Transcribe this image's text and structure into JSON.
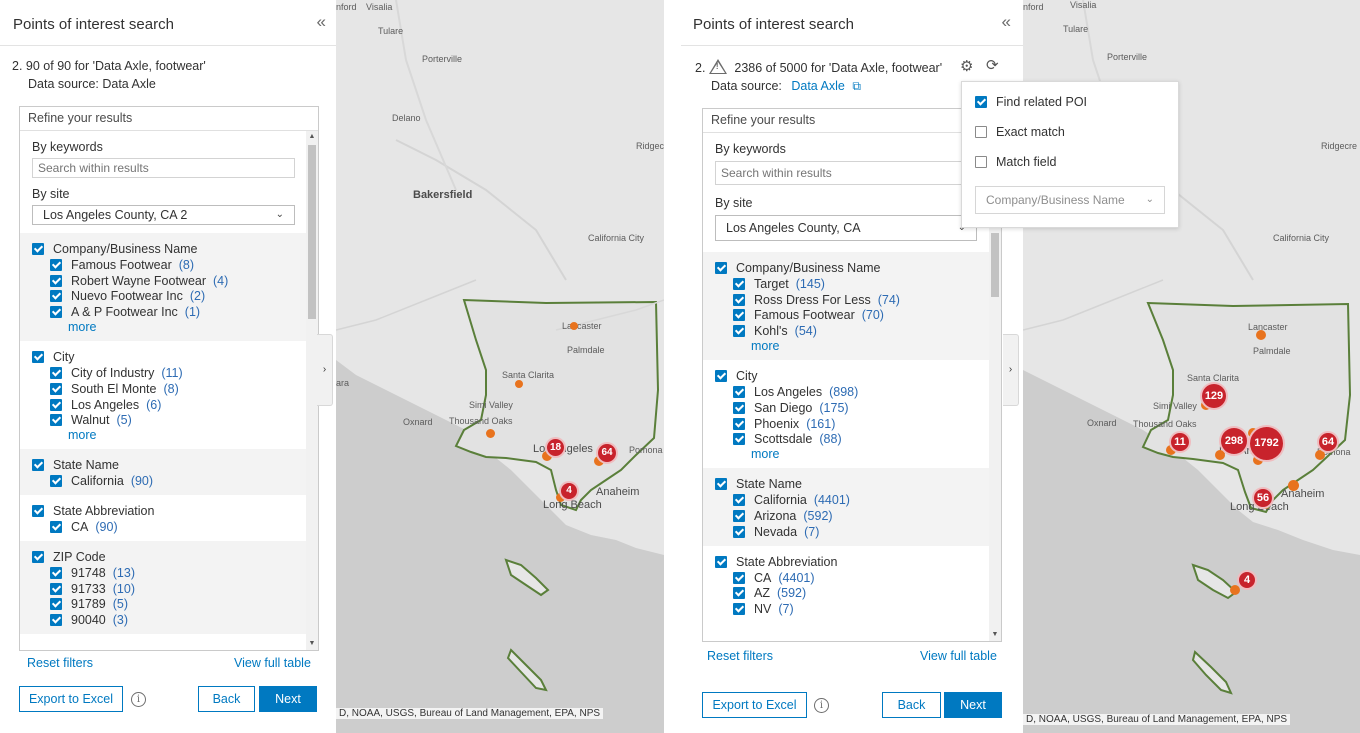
{
  "left": {
    "panel": {
      "title": "Points of interest search",
      "collapse_icon": "«",
      "step_number": "2.",
      "result_text": "90 of 90 for 'Data Axle, footwear'",
      "data_source_label": "Data source:",
      "data_source": "Data Axle",
      "refine_title": "Refine your results",
      "keywords_label": "By keywords",
      "search_placeholder": "Search within results",
      "site_label": "By site",
      "site_value": "Los Angeles County, CA 2",
      "facets": [
        {
          "title": "Company/Business Name",
          "items": [
            {
              "label": "Famous Footwear",
              "count": "(8)"
            },
            {
              "label": "Robert Wayne Footwear",
              "count": "(4)"
            },
            {
              "label": "Nuevo Footwear Inc",
              "count": "(2)"
            },
            {
              "label": "A & P Footwear Inc",
              "count": "(1)"
            }
          ],
          "more": "more"
        },
        {
          "title": "City",
          "items": [
            {
              "label": "City of Industry",
              "count": "(11)"
            },
            {
              "label": "South El Monte",
              "count": "(8)"
            },
            {
              "label": "Los Angeles",
              "count": "(6)"
            },
            {
              "label": "Walnut",
              "count": "(5)"
            }
          ],
          "more": "more"
        },
        {
          "title": "State Name",
          "items": [
            {
              "label": "California",
              "count": "(90)"
            }
          ]
        },
        {
          "title": "State Abbreviation",
          "items": [
            {
              "label": "CA",
              "count": "(90)"
            }
          ]
        },
        {
          "title": "ZIP Code",
          "items": [
            {
              "label": "91748",
              "count": "(13)"
            },
            {
              "label": "91733",
              "count": "(10)"
            },
            {
              "label": "91789",
              "count": "(5)"
            },
            {
              "label": "90040",
              "count": "(3)"
            }
          ]
        }
      ],
      "reset_filters": "Reset filters",
      "view_full_table": "View full table",
      "export": "Export to Excel",
      "info_icon": "i",
      "back": "Back",
      "next": "Next"
    },
    "map": {
      "labels": [
        "Visalia",
        "Tulare",
        "Porterville",
        "Delano",
        "Bakersfield",
        "Ridgecr",
        "California City",
        "Lancaster",
        "Palmdale",
        "Santa Clarita",
        "Simi Valley",
        "Oxnard",
        "Thousand Oaks",
        "Los Angeles",
        "Pomona",
        "Anaheim",
        "Long Beach",
        "nford",
        "ara"
      ],
      "clusters": [
        "18",
        "64",
        "4"
      ],
      "attribution": "D, NOAA, USGS, Bureau of Land Management, EPA, NPS"
    }
  },
  "right": {
    "panel": {
      "title": "Points of interest search",
      "collapse_icon": "«",
      "step_number": "2.",
      "result_text": "2386 of 5000 for 'Data Axle, footwear'",
      "data_source_label": "Data source:",
      "data_source": "Data Axle",
      "refine_title": "Refine your results",
      "keywords_label": "By keywords",
      "search_placeholder": "Search within results",
      "site_label": "By site",
      "site_value": "Los Angeles County, CA",
      "facets": [
        {
          "title": "Company/Business Name",
          "items": [
            {
              "label": "Target",
              "count": "(145)"
            },
            {
              "label": "Ross Dress For Less",
              "count": "(74)"
            },
            {
              "label": "Famous Footwear",
              "count": "(70)"
            },
            {
              "label": "Kohl's",
              "count": "(54)"
            }
          ],
          "more": "more"
        },
        {
          "title": "City",
          "items": [
            {
              "label": "Los Angeles",
              "count": "(898)"
            },
            {
              "label": "San Diego",
              "count": "(175)"
            },
            {
              "label": "Phoenix",
              "count": "(161)"
            },
            {
              "label": "Scottsdale",
              "count": "(88)"
            }
          ],
          "more": "more"
        },
        {
          "title": "State Name",
          "items": [
            {
              "label": "California",
              "count": "(4401)"
            },
            {
              "label": "Arizona",
              "count": "(592)"
            },
            {
              "label": "Nevada",
              "count": "(7)"
            }
          ]
        },
        {
          "title": "State Abbreviation",
          "items": [
            {
              "label": "CA",
              "count": "(4401)"
            },
            {
              "label": "AZ",
              "count": "(592)"
            },
            {
              "label": "NV",
              "count": "(7)"
            }
          ]
        }
      ],
      "reset_filters": "Reset filters",
      "view_full_table": "View full table",
      "export": "Export to Excel",
      "info_icon": "i",
      "back": "Back",
      "next": "Next"
    },
    "settings_menu": {
      "options": [
        {
          "label": "Find related POI",
          "checked": true
        },
        {
          "label": "Exact match",
          "checked": false
        },
        {
          "label": "Match field",
          "checked": false
        }
      ],
      "match_field_value": "Company/Business Name"
    },
    "map": {
      "labels": [
        "Tulare",
        "Porterville",
        "Ridgecre",
        "California City",
        "Lancaster",
        "Palmdale",
        "Santa Clarita",
        "Simi Valley",
        "Oxnard",
        "Thousand Oaks",
        "Los Angeles",
        "Pomona",
        "Anaheim",
        "Long Beach",
        "nford",
        "Visalia"
      ],
      "clusters": [
        "129",
        "11",
        "298",
        "1792",
        "64",
        "56",
        "4"
      ],
      "attribution": "D, NOAA, USGS, Bureau of Land Management, EPA, NPS"
    }
  },
  "colors": {
    "accent": "#0079c1",
    "cluster": "#c8232c",
    "marker": "#e8731e",
    "boundary": "#5a7f3a"
  }
}
